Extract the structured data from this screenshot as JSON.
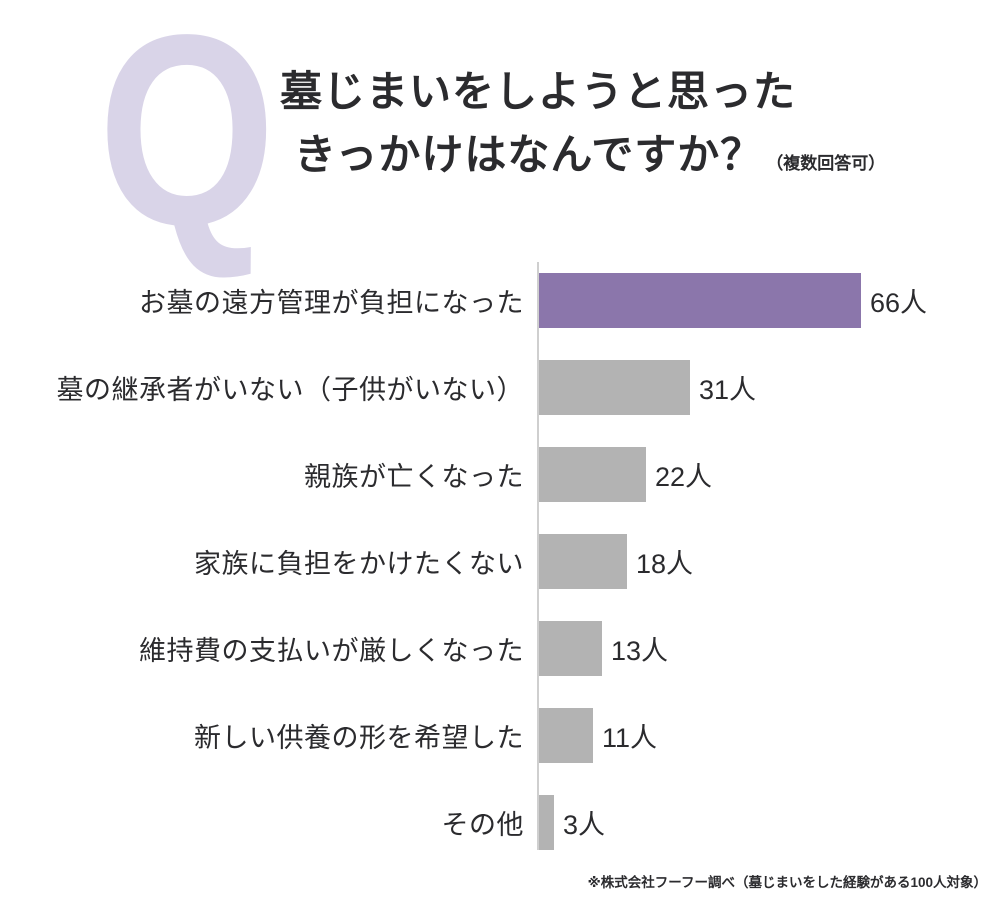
{
  "header": {
    "q_letter": "Q",
    "title_line1": "墓じまいをしようと思った",
    "title_line2": "きっかけはなんですか？",
    "title_note": "（複数回答可）"
  },
  "chart_data": {
    "type": "bar",
    "orientation": "horizontal",
    "title": "墓じまいをしようと思ったきっかけはなんですか？（複数回答可）",
    "categories": [
      "お墓の遠方管理が負担になった",
      "墓の継承者がいない（子供がいない）",
      "親族が亡くなった",
      "家族に負担をかけたくない",
      "維持費の支払いが厳しくなった",
      "新しい供養の形を希望した",
      "その他"
    ],
    "values": [
      66,
      31,
      22,
      18,
      13,
      11,
      3
    ],
    "unit": "人",
    "value_labels": [
      "66人",
      "31人",
      "22人",
      "18人",
      "13人",
      "11人",
      "3人"
    ],
    "xlim": [
      0,
      66
    ],
    "highlight_index": 0,
    "grid": false,
    "legend": false,
    "colors": {
      "highlight_bar": "#8b76ab",
      "default_bar": "#b3b3b3",
      "q_letter": "#d9d4e8",
      "text": "#2b2b2e",
      "axis_line": "#cfcfcf"
    }
  },
  "footnote": "※株式会社フーフー調べ（墓じまいをした経験がある100人対象）"
}
